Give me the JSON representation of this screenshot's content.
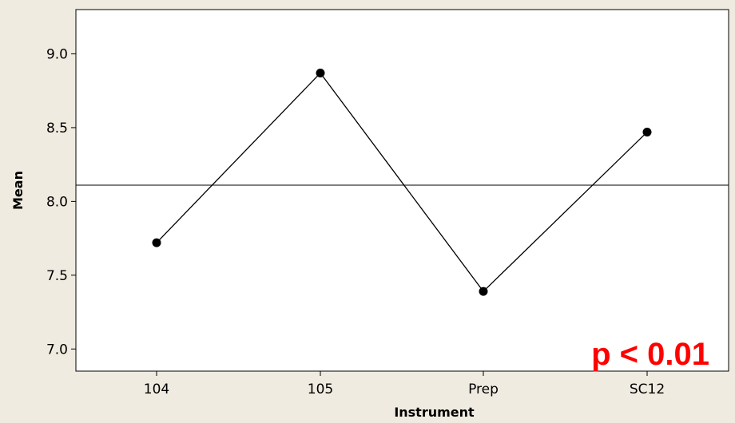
{
  "chart_data": {
    "type": "line",
    "title": "",
    "xlabel": "Instrument",
    "ylabel": "Mean",
    "categories": [
      "104",
      "105",
      "Prep",
      "SC12"
    ],
    "series": [
      {
        "values": [
          7.72,
          8.87,
          7.39,
          8.47
        ]
      }
    ],
    "reference_line": 8.11,
    "ylim": [
      6.85,
      9.3
    ],
    "yticks": [
      7.0,
      7.5,
      8.0,
      8.5,
      9.0
    ],
    "ytick_labels": [
      "7.0",
      "7.5",
      "8.0",
      "8.5",
      "9.0"
    ],
    "grid": false,
    "legend": "none",
    "annotation": "p < 0.01",
    "colors": {
      "background": "#f0ebe0",
      "plot_area": "#ffffff",
      "line": "#000000",
      "reference_line": "#000000",
      "annotation": "#ff0000"
    }
  }
}
